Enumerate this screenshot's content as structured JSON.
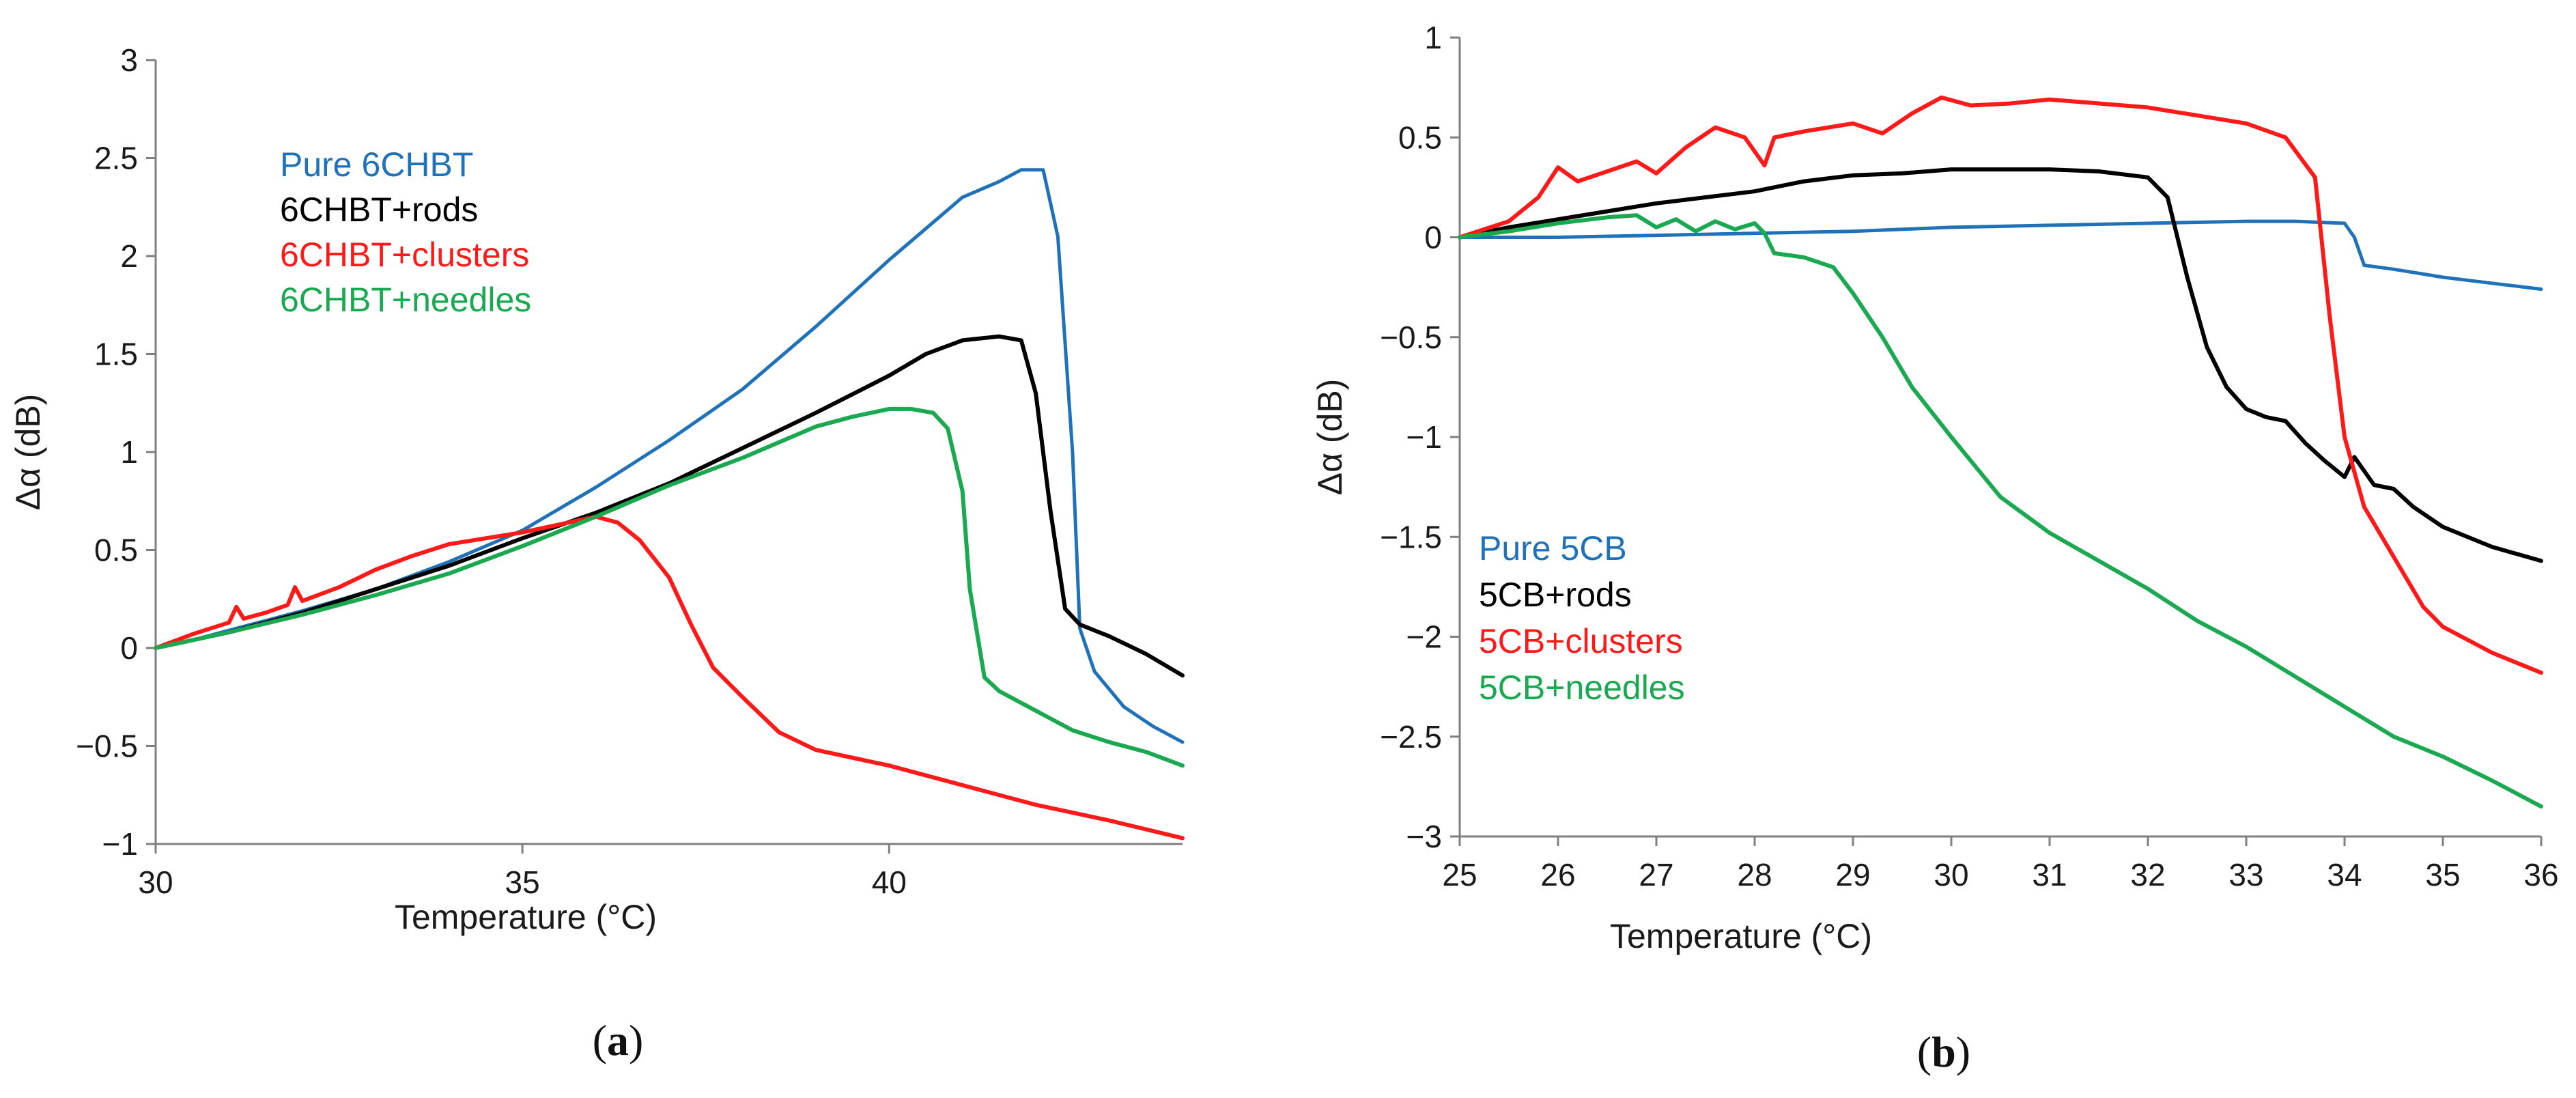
{
  "chart_data": [
    {
      "type": "line",
      "panel": "a",
      "panel_label": {
        "open": "(",
        "letter": "a",
        "close": ")"
      },
      "xlabel": "Temperature (°C)",
      "ylabel": "Δα (dB)",
      "xlim": [
        30,
        44
      ],
      "ylim": [
        -1,
        3
      ],
      "xticks": [
        30,
        35,
        40
      ],
      "xtick_labels": [
        "30",
        "35",
        "40"
      ],
      "yticks": [
        -1,
        -0.5,
        0,
        0.5,
        1,
        1.5,
        2,
        2.5,
        3
      ],
      "ytick_labels": [
        "−1",
        "−0.5",
        "0",
        "0.5",
        "1",
        "1.5",
        "2",
        "2.5",
        "3"
      ],
      "legend_position": "upper-left",
      "series": [
        {
          "name": "Pure 6CHBT",
          "color": "#1f72b8",
          "x": [
            30,
            30.5,
            31,
            32,
            33,
            34,
            35,
            36,
            37,
            38,
            39,
            40,
            41,
            41.5,
            41.8,
            42.1,
            42.3,
            42.5,
            42.6,
            42.8,
            43.2,
            43.6,
            44
          ],
          "y": [
            0,
            0.04,
            0.09,
            0.19,
            0.3,
            0.44,
            0.6,
            0.82,
            1.06,
            1.32,
            1.64,
            1.98,
            2.3,
            2.38,
            2.44,
            2.44,
            2.1,
            1.0,
            0.1,
            -0.12,
            -0.3,
            -0.4,
            -0.48
          ]
        },
        {
          "name": "6CHBT+rods",
          "color": "#000000",
          "x": [
            30,
            31,
            32,
            33,
            34,
            35,
            36,
            37,
            38,
            39,
            40,
            40.5,
            41,
            41.5,
            41.8,
            42,
            42.2,
            42.4,
            42.6,
            43,
            43.5,
            44
          ],
          "y": [
            0,
            0.08,
            0.18,
            0.3,
            0.42,
            0.56,
            0.69,
            0.84,
            1.02,
            1.2,
            1.39,
            1.5,
            1.57,
            1.59,
            1.57,
            1.3,
            0.7,
            0.2,
            0.12,
            0.06,
            -0.03,
            -0.14
          ]
        },
        {
          "name": "6CHBT+clusters",
          "color": "#ff1a1a",
          "x": [
            30,
            30.5,
            31,
            31.1,
            31.2,
            31.5,
            31.8,
            31.9,
            32,
            32.5,
            33,
            33.5,
            34,
            34.5,
            35,
            35.5,
            36,
            36.3,
            36.6,
            37,
            37.3,
            37.6,
            38,
            38.5,
            39,
            40,
            41,
            42,
            43,
            44
          ],
          "y": [
            0,
            0.07,
            0.13,
            0.21,
            0.15,
            0.18,
            0.22,
            0.31,
            0.24,
            0.31,
            0.4,
            0.47,
            0.53,
            0.56,
            0.59,
            0.63,
            0.67,
            0.64,
            0.55,
            0.36,
            0.12,
            -0.1,
            -0.25,
            -0.43,
            -0.52,
            -0.6,
            -0.7,
            -0.8,
            -0.88,
            -0.97
          ]
        },
        {
          "name": "6CHBT+needles",
          "color": "#1aa850",
          "x": [
            30,
            31,
            32,
            33,
            34,
            35,
            36,
            37,
            38,
            39,
            39.5,
            40,
            40.3,
            40.6,
            40.8,
            41,
            41.1,
            41.3,
            41.5,
            42,
            42.5,
            43,
            43.5,
            44
          ],
          "y": [
            0,
            0.08,
            0.17,
            0.27,
            0.38,
            0.52,
            0.67,
            0.83,
            0.97,
            1.13,
            1.18,
            1.22,
            1.22,
            1.2,
            1.12,
            0.8,
            0.3,
            -0.15,
            -0.22,
            -0.32,
            -0.42,
            -0.48,
            -0.53,
            -0.6
          ]
        }
      ]
    },
    {
      "type": "line",
      "panel": "b",
      "panel_label": {
        "open": "(",
        "letter": "b",
        "close": ")"
      },
      "xlabel": "Temperature (°C)",
      "ylabel": "Δα (dB)",
      "xlim": [
        25,
        36
      ],
      "ylim": [
        -3,
        1
      ],
      "xticks": [
        25,
        26,
        27,
        28,
        29,
        30,
        31,
        32,
        33,
        34,
        35,
        36
      ],
      "xtick_labels": [
        "25",
        "26",
        "27",
        "28",
        "29",
        "30",
        "31",
        "32",
        "33",
        "34",
        "35",
        "36"
      ],
      "yticks": [
        -3,
        -2.5,
        -2,
        -1.5,
        -1,
        -0.5,
        0,
        0.5,
        1
      ],
      "ytick_labels": [
        "−3",
        "−2.5",
        "−2",
        "−1.5",
        "−1",
        "−0.5",
        "0",
        "0.5",
        "1"
      ],
      "legend_position": "lower-left",
      "series": [
        {
          "name": "Pure 5CB",
          "color": "#1f72b8",
          "x": [
            25,
            26,
            27,
            28,
            29,
            30,
            31,
            32,
            33,
            33.5,
            34,
            34.1,
            34.2,
            34.5,
            35,
            35.5,
            36
          ],
          "y": [
            0,
            0,
            0.01,
            0.02,
            0.03,
            0.05,
            0.06,
            0.07,
            0.08,
            0.08,
            0.07,
            0,
            -0.14,
            -0.16,
            -0.2,
            -0.23,
            -0.26
          ]
        },
        {
          "name": "5CB+rods",
          "color": "#000000",
          "x": [
            25,
            25.5,
            26,
            26.5,
            27,
            27.5,
            28,
            28.5,
            29,
            29.5,
            30,
            30.5,
            31,
            31.5,
            32,
            32.2,
            32.4,
            32.6,
            32.8,
            33,
            33.2,
            33.4,
            33.6,
            33.8,
            34,
            34.1,
            34.3,
            34.5,
            34.7,
            35,
            35.5,
            36
          ],
          "y": [
            0,
            0.05,
            0.09,
            0.13,
            0.17,
            0.2,
            0.23,
            0.28,
            0.31,
            0.32,
            0.34,
            0.34,
            0.34,
            0.33,
            0.3,
            0.2,
            -0.2,
            -0.55,
            -0.75,
            -0.86,
            -0.9,
            -0.92,
            -1.03,
            -1.12,
            -1.2,
            -1.1,
            -1.24,
            -1.26,
            -1.35,
            -1.45,
            -1.55,
            -1.62
          ]
        },
        {
          "name": "5CB+clusters",
          "color": "#ff1a1a",
          "x": [
            25,
            25.5,
            25.8,
            26,
            26.2,
            26.5,
            26.8,
            27,
            27.3,
            27.6,
            27.9,
            28.1,
            28.2,
            28.5,
            29,
            29.3,
            29.6,
            29.9,
            30.2,
            30.6,
            31,
            31.5,
            32,
            32.5,
            33,
            33.4,
            33.7,
            33.85,
            34,
            34.2,
            34.5,
            34.8,
            35,
            35.5,
            36
          ],
          "y": [
            0,
            0.08,
            0.2,
            0.35,
            0.28,
            0.33,
            0.38,
            0.32,
            0.45,
            0.55,
            0.5,
            0.36,
            0.5,
            0.53,
            0.57,
            0.52,
            0.62,
            0.7,
            0.66,
            0.67,
            0.69,
            0.67,
            0.65,
            0.61,
            0.57,
            0.5,
            0.3,
            -0.4,
            -1.0,
            -1.35,
            -1.6,
            -1.85,
            -1.95,
            -2.08,
            -2.18
          ]
        },
        {
          "name": "5CB+needles",
          "color": "#1aa850",
          "x": [
            25,
            25.5,
            26,
            26.5,
            26.8,
            27,
            27.2,
            27.4,
            27.6,
            27.8,
            28,
            28.1,
            28.2,
            28.5,
            28.8,
            29,
            29.3,
            29.6,
            30,
            30.5,
            31,
            31.5,
            32,
            32.5,
            33,
            33.5,
            34,
            34.5,
            35,
            35.5,
            36
          ],
          "y": [
            0,
            0.03,
            0.07,
            0.1,
            0.11,
            0.05,
            0.09,
            0.03,
            0.08,
            0.04,
            0.07,
            0.02,
            -0.08,
            -0.1,
            -0.15,
            -0.28,
            -0.5,
            -0.75,
            -1.0,
            -1.3,
            -1.48,
            -1.62,
            -1.76,
            -1.92,
            -2.05,
            -2.2,
            -2.35,
            -2.5,
            -2.6,
            -2.72,
            -2.85
          ]
        }
      ]
    }
  ]
}
